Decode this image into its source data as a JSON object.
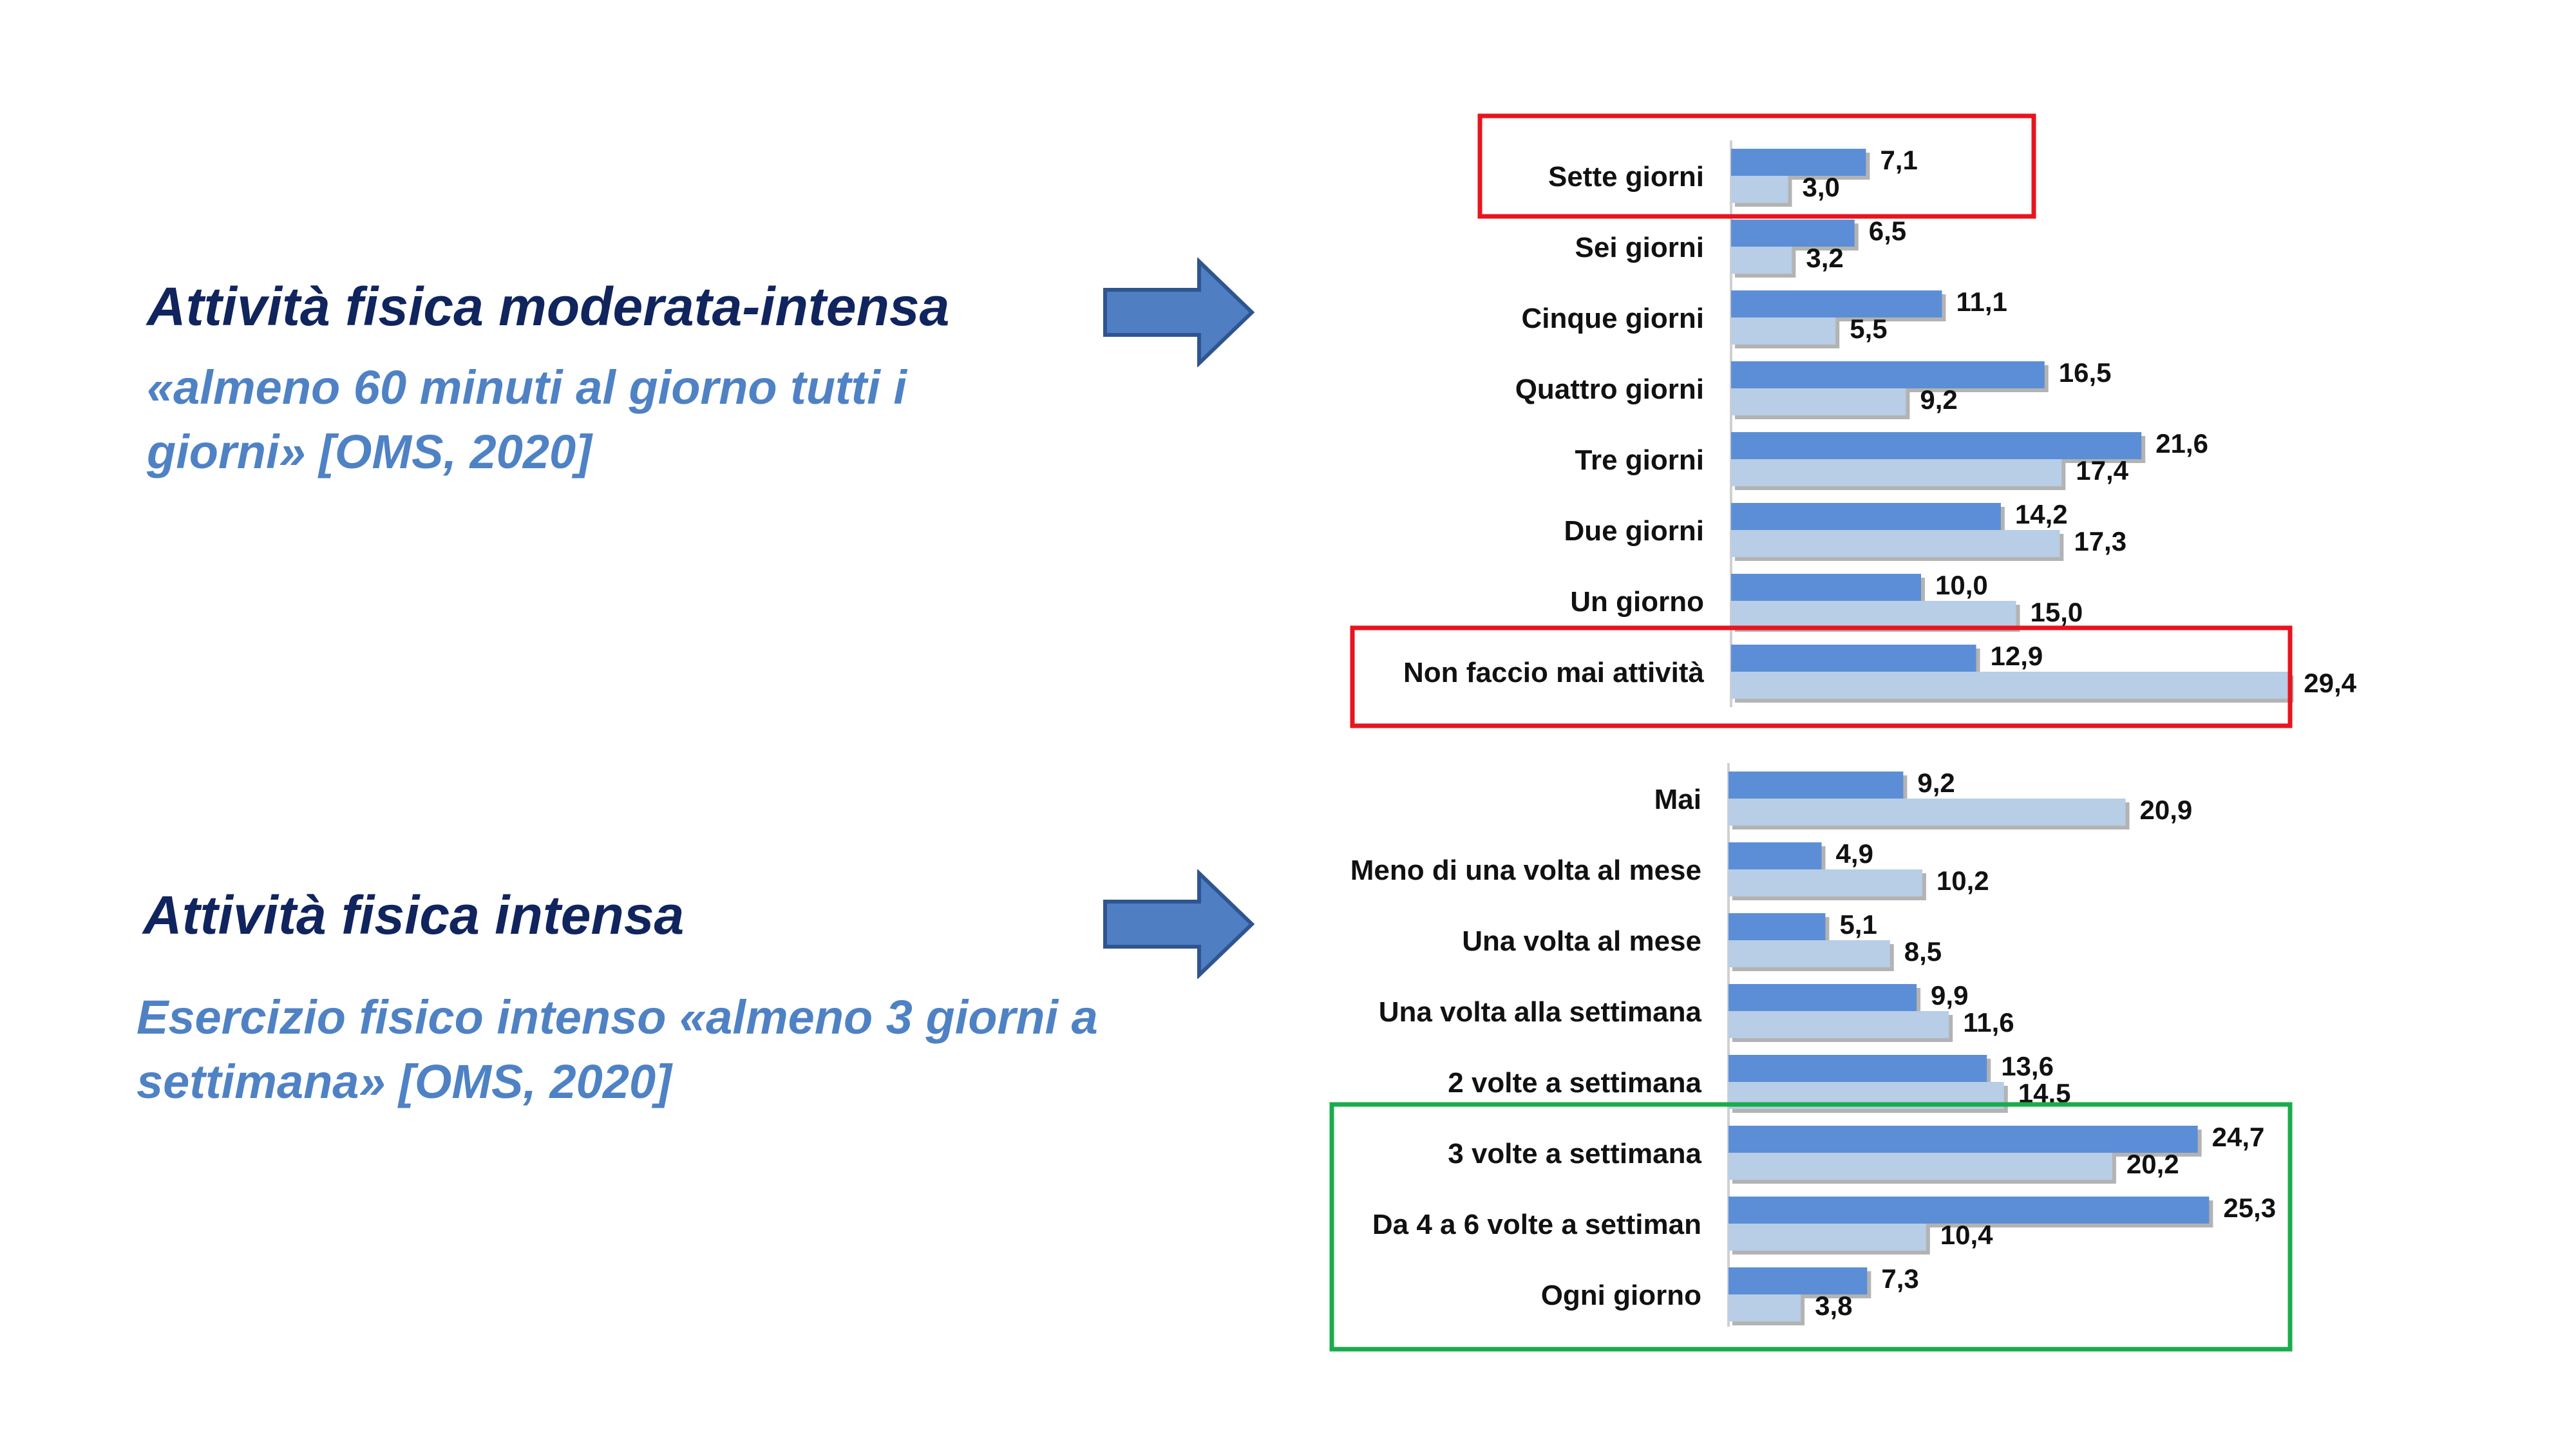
{
  "left_panel": {
    "heading_1": "Attività fisica moderata-intensa",
    "subtext_1": "«almeno 60 minuti al giorno tutti i giorni» [OMS, 2020]",
    "heading_2": "Attività fisica intensa",
    "subtext_2": "Esercizio fisico intenso «almeno 3 giorni a settimana» [OMS, 2020]"
  },
  "colors": {
    "heading": "#10245e",
    "subtext": "#4f82c4",
    "arrow": "#4f7ec2",
    "arrow_outline": "#2f5590",
    "series_dark": "#5b8ed6",
    "series_light": "#b8cde6",
    "highlight_red": "#e8141e",
    "highlight_green": "#1aac4b"
  },
  "chart_data": [
    {
      "type": "bar",
      "orientation": "horizontal",
      "categories": [
        "Sette giorni",
        "Sei giorni",
        "Cinque giorni",
        "Quattro giorni",
        "Tre giorni",
        "Due giorni",
        "Un giorno",
        "Non faccio mai attività"
      ],
      "series": [
        {
          "values": [
            7.1,
            6.5,
            11.1,
            16.5,
            21.6,
            14.2,
            10.0,
            12.9
          ]
        },
        {
          "values": [
            3.0,
            3.2,
            5.5,
            9.2,
            17.4,
            17.3,
            15.0,
            29.4
          ]
        }
      ],
      "value_labels": [
        [
          "7,1",
          "6,5",
          "11,1",
          "16,5",
          "21,6",
          "14,2",
          "10,0",
          "12,9"
        ],
        [
          "3,0",
          "3,2",
          "5,5",
          "9,2",
          "17,4",
          "17,3",
          "15,0",
          "29,4"
        ]
      ],
      "highlights": [
        {
          "category": "Sette giorni",
          "color": "red"
        },
        {
          "category": "Non faccio mai attività",
          "color": "red"
        }
      ],
      "title": "",
      "xlabel": "",
      "ylabel": "",
      "grid": false,
      "legend": "none"
    },
    {
      "type": "bar",
      "orientation": "horizontal",
      "categories": [
        "Mai",
        "Meno di una volta al mese",
        "Una volta al mese",
        "Una volta alla settimana",
        "2 volte a settimana",
        "3 volte a settimana",
        "Da 4 a 6 volte a settiman",
        "Ogni giorno"
      ],
      "series": [
        {
          "values": [
            9.2,
            4.9,
            5.1,
            9.9,
            13.6,
            24.7,
            25.3,
            7.3
          ]
        },
        {
          "values": [
            20.9,
            10.2,
            8.5,
            11.6,
            14.5,
            20.2,
            10.4,
            3.8
          ]
        }
      ],
      "value_labels": [
        [
          "9,2",
          "4,9",
          "5,1",
          "9,9",
          "13,6",
          "24,7",
          "25,3",
          "7,3"
        ],
        [
          "20,9",
          "10,2",
          "8,5",
          "11,6",
          "14,5",
          "20,2",
          "10,4",
          "3,8"
        ]
      ],
      "highlights": [
        {
          "categories": [
            "3 volte a settimana",
            "Da 4 a 6 volte a settiman",
            "Ogni giorno"
          ],
          "color": "green"
        }
      ],
      "title": "",
      "xlabel": "",
      "ylabel": "",
      "grid": false,
      "legend": "none"
    }
  ]
}
